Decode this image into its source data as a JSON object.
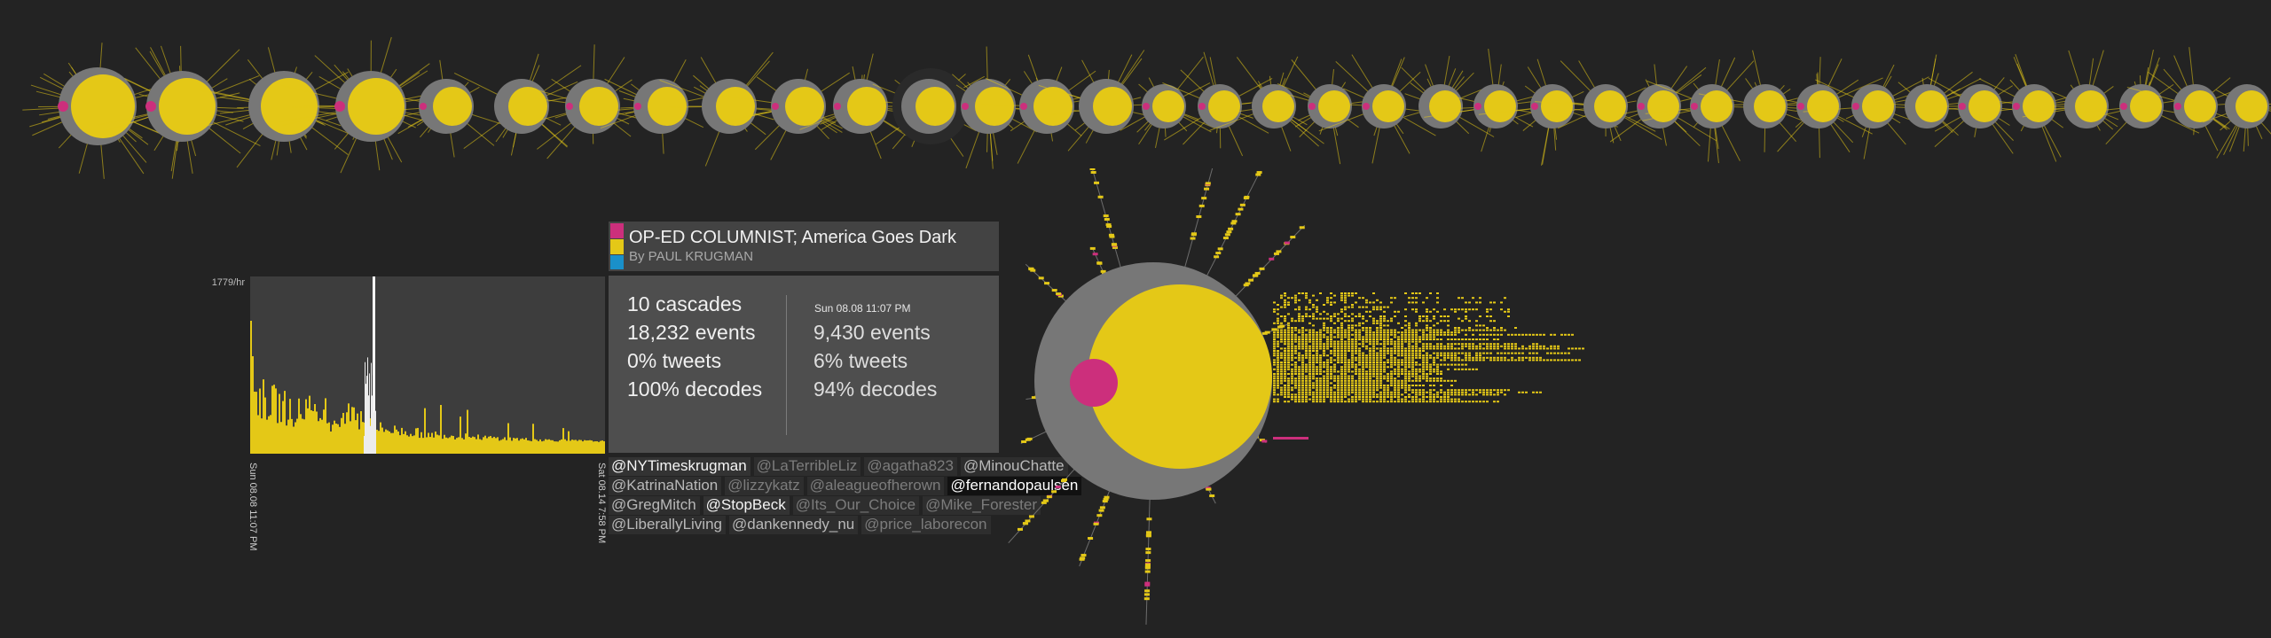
{
  "colors": {
    "background": "#232323",
    "decode": "#e4c817",
    "tweet": "#cc2f7c",
    "ring": "#777777",
    "blue": "#1a90c9"
  },
  "article": {
    "title": "OP-ED COLUMNIST; America Goes Dark",
    "byline": "By PAUL KRUGMAN",
    "swatches": [
      "#cc2f7c",
      "#e4c817",
      "#1a90c9"
    ]
  },
  "histogram": {
    "max_label": "1779/hr",
    "start_label": "Sun 08.08 11:07 PM",
    "end_label": "Sat 08.14 7:58 PM"
  },
  "stats": {
    "total": {
      "cascades": "10 cascades",
      "events": "18,232 events",
      "tweets": "0% tweets",
      "decodes": "100% decodes"
    },
    "selected": {
      "time": "Sun 08.08 11:07 PM",
      "events": "9,430 events",
      "tweets": "6% tweets",
      "decodes": "94% decodes"
    }
  },
  "users": [
    [
      {
        "name": "@NYTimeskrugman",
        "tone": "bright"
      },
      {
        "name": "@LaTerribleLiz",
        "tone": "dim"
      },
      {
        "name": "@agatha823",
        "tone": "dim"
      },
      {
        "name": "@MinouChatte",
        "tone": "mid"
      }
    ],
    [
      {
        "name": "@KatrinaNation",
        "tone": "mid"
      },
      {
        "name": "@lizzykatz",
        "tone": "dim"
      },
      {
        "name": "@aleagueofherown",
        "tone": "dim"
      },
      {
        "name": "@fernandopaulsen",
        "tone": "active"
      }
    ],
    [
      {
        "name": "@GregMitch",
        "tone": "mid"
      },
      {
        "name": "@StopBeck",
        "tone": "bright"
      },
      {
        "name": "@Its_Our_Choice",
        "tone": "dim"
      },
      {
        "name": "@Mike_Forester",
        "tone": "dim"
      }
    ],
    [
      {
        "name": "@LiberallyLiving",
        "tone": "mid"
      },
      {
        "name": "@dankennedy_nu",
        "tone": "mid"
      },
      {
        "name": "@price_laborecon",
        "tone": "dim"
      }
    ]
  ]
}
